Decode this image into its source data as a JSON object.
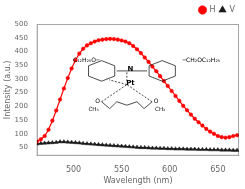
{
  "chart_data": {
    "type": "line",
    "xlabel": "Wavelength (nm)",
    "ylabel": "Intensity (a.u.)",
    "x": [
      462,
      466,
      470,
      474,
      478,
      482,
      486,
      490,
      494,
      498,
      502,
      506,
      510,
      514,
      518,
      522,
      526,
      530,
      534,
      538,
      542,
      546,
      550,
      554,
      558,
      562,
      566,
      570,
      574,
      578,
      582,
      586,
      590,
      594,
      598,
      602,
      606,
      610,
      614,
      618,
      622,
      626,
      630,
      634,
      638,
      642,
      646,
      650,
      654,
      658,
      662,
      666,
      670
    ],
    "series": [
      {
        "name": "H",
        "color": "#ff0000",
        "marker": "circle",
        "values": [
          72,
          80,
          92,
          115,
          148,
          185,
          225,
          265,
          303,
          338,
          368,
          392,
          410,
          422,
          430,
          436,
          441,
          443,
          445,
          446,
          445,
          443,
          440,
          436,
          430,
          420,
          408,
          394,
          378,
          362,
          345,
          328,
          310,
          292,
          274,
          256,
          238,
          220,
          202,
          186,
          170,
          155,
          142,
          130,
          118,
          108,
          100,
          92,
          88,
          86,
          88,
          92,
          95
        ]
      },
      {
        "name": "V",
        "color": "#1a1a1a",
        "marker": "triangle",
        "values": [
          63,
          65,
          66,
          67,
          68,
          69,
          71,
          71,
          70,
          69,
          68,
          67,
          65,
          64,
          63,
          62,
          61,
          60,
          59,
          58,
          57,
          56,
          55,
          54,
          53,
          52,
          51,
          50,
          50,
          49,
          48,
          48,
          47,
          47,
          46,
          46,
          45,
          45,
          45,
          44,
          44,
          44,
          43,
          43,
          43,
          42,
          42,
          42,
          41,
          41,
          41,
          40,
          40
        ]
      }
    ],
    "xlim": [
      462,
      672
    ],
    "ylim": [
      20,
      500
    ],
    "xticks": [
      500,
      550,
      600,
      650
    ],
    "yticks": [
      50,
      100,
      150,
      200,
      250,
      300,
      350,
      400,
      450,
      500
    ],
    "grid": false,
    "legend": "upper right",
    "annotations": [
      "C₁₂H₂₅O─",
      "─CH₂OC₁₂H₂₅",
      "N",
      "Pt",
      "O",
      "O",
      "ĊH₃",
      "ĊH₃"
    ]
  }
}
